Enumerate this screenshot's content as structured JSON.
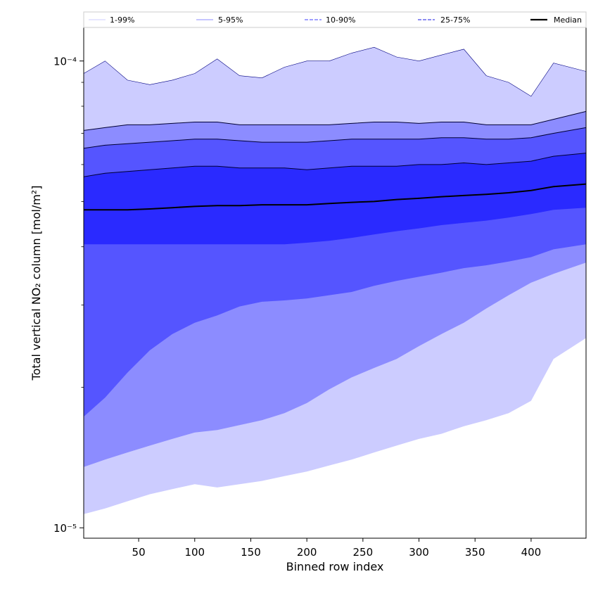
{
  "chart_data": {
    "type": "area",
    "xlabel": "Binned row index",
    "ylabel": "Total vertical NO₂ column [mol/m²]",
    "xlim": [
      1,
      449
    ],
    "ylim": [
      9.5e-06,
      0.000118
    ],
    "y_scale": "log",
    "x_ticks": [
      50,
      100,
      150,
      200,
      250,
      300,
      350,
      400
    ],
    "x_tick_labels": [
      "50",
      "100",
      "150",
      "200",
      "250",
      "300",
      "350",
      "400"
    ],
    "y_ticks": [
      1e-05,
      0.0001
    ],
    "y_tick_labels": [
      "10⁻⁵",
      "10⁻⁴"
    ],
    "grid": false,
    "legend_position": "top",
    "legend": [
      {
        "label": "1-99%",
        "style": "thin-line",
        "color": "#ccccff"
      },
      {
        "label": "5-95%",
        "style": "thin-line",
        "color": "#8c8cff"
      },
      {
        "label": "10-90%",
        "style": "dashed",
        "color": "#8080ff"
      },
      {
        "label": "25-75%",
        "style": "dashed",
        "color": "#6666ee"
      },
      {
        "label": "Median",
        "style": "solid",
        "color": "#000000"
      }
    ],
    "x": [
      1,
      20,
      40,
      60,
      80,
      100,
      120,
      140,
      160,
      180,
      200,
      220,
      240,
      260,
      280,
      300,
      320,
      340,
      360,
      380,
      400,
      420,
      449
    ],
    "bands": [
      {
        "name": "1-99%",
        "color": "#ccccff",
        "upper": [
          9.4e-05,
          0.0001,
          9.1e-05,
          8.9e-05,
          9.1e-05,
          9.4e-05,
          0.000101,
          9.3e-05,
          9.2e-05,
          9.7e-05,
          0.0001,
          0.0001,
          0.000104,
          0.000107,
          0.000102,
          0.0001,
          0.000103,
          0.000106,
          9.3e-05,
          9e-05,
          8.4e-05,
          9.9e-05,
          9.5e-05
        ],
        "lower": [
          1.07e-05,
          1.1e-05,
          1.14e-05,
          1.18e-05,
          1.21e-05,
          1.24e-05,
          1.22e-05,
          1.24e-05,
          1.26e-05,
          1.29e-05,
          1.32e-05,
          1.36e-05,
          1.4e-05,
          1.45e-05,
          1.5e-05,
          1.55e-05,
          1.59e-05,
          1.65e-05,
          1.7e-05,
          1.76e-05,
          1.87e-05,
          2.3e-05,
          2.55e-05
        ]
      },
      {
        "name": "5-95%",
        "color": "#8c8cff",
        "upper": [
          7.1e-05,
          7.2e-05,
          7.3e-05,
          7.3e-05,
          7.35e-05,
          7.4e-05,
          7.4e-05,
          7.3e-05,
          7.3e-05,
          7.3e-05,
          7.3e-05,
          7.3e-05,
          7.35e-05,
          7.4e-05,
          7.4e-05,
          7.35e-05,
          7.4e-05,
          7.4e-05,
          7.3e-05,
          7.3e-05,
          7.3e-05,
          7.5e-05,
          7.8e-05
        ],
        "lower": [
          1.35e-05,
          1.4e-05,
          1.45e-05,
          1.5e-05,
          1.55e-05,
          1.6e-05,
          1.62e-05,
          1.66e-05,
          1.7e-05,
          1.76e-05,
          1.85e-05,
          1.98e-05,
          2.1e-05,
          2.2e-05,
          2.3e-05,
          2.45e-05,
          2.6e-05,
          2.75e-05,
          2.95e-05,
          3.15e-05,
          3.35e-05,
          3.5e-05,
          3.7e-05
        ]
      },
      {
        "name": "10-90%",
        "color": "#5555ff",
        "upper": [
          6.5e-05,
          6.6e-05,
          6.65e-05,
          6.7e-05,
          6.75e-05,
          6.8e-05,
          6.8e-05,
          6.75e-05,
          6.7e-05,
          6.7e-05,
          6.7e-05,
          6.75e-05,
          6.8e-05,
          6.8e-05,
          6.8e-05,
          6.8e-05,
          6.85e-05,
          6.85e-05,
          6.8e-05,
          6.8e-05,
          6.85e-05,
          7e-05,
          7.2e-05
        ],
        "lower": [
          1.73e-05,
          1.9e-05,
          2.15e-05,
          2.4e-05,
          2.6e-05,
          2.75e-05,
          2.85e-05,
          2.98e-05,
          3.05e-05,
          3.07e-05,
          3.1e-05,
          3.15e-05,
          3.2e-05,
          3.3e-05,
          3.38e-05,
          3.45e-05,
          3.52e-05,
          3.6e-05,
          3.65e-05,
          3.72e-05,
          3.8e-05,
          3.95e-05,
          4.05e-05
        ]
      },
      {
        "name": "25-75%",
        "color": "#2a2aff",
        "upper": [
          5.65e-05,
          5.75e-05,
          5.8e-05,
          5.85e-05,
          5.9e-05,
          5.95e-05,
          5.95e-05,
          5.9e-05,
          5.9e-05,
          5.9e-05,
          5.85e-05,
          5.9e-05,
          5.95e-05,
          5.95e-05,
          5.95e-05,
          6e-05,
          6e-05,
          6.05e-05,
          6e-05,
          6.05e-05,
          6.1e-05,
          6.25e-05,
          6.35e-05
        ],
        "lower": [
          4.05e-05,
          4.05e-05,
          4.05e-05,
          4.05e-05,
          4.05e-05,
          4.05e-05,
          4.05e-05,
          4.05e-05,
          4.05e-05,
          4.05e-05,
          4.08e-05,
          4.12e-05,
          4.18e-05,
          4.25e-05,
          4.32e-05,
          4.38e-05,
          4.45e-05,
          4.5e-05,
          4.55e-05,
          4.62e-05,
          4.7e-05,
          4.8e-05,
          4.85e-05
        ]
      }
    ],
    "median": {
      "name": "Median",
      "color": "#000000",
      "values": [
        4.8e-05,
        4.8e-05,
        4.8e-05,
        4.82e-05,
        4.85e-05,
        4.88e-05,
        4.9e-05,
        4.9e-05,
        4.92e-05,
        4.92e-05,
        4.92e-05,
        4.95e-05,
        4.98e-05,
        5e-05,
        5.05e-05,
        5.08e-05,
        5.12e-05,
        5.15e-05,
        5.18e-05,
        5.22e-05,
        5.28e-05,
        5.38e-05,
        5.45e-05
      ]
    }
  }
}
